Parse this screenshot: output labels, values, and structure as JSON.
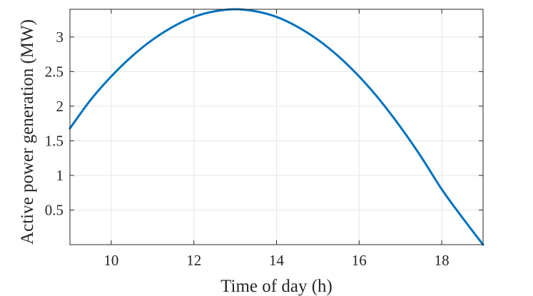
{
  "chart_data": {
    "type": "line",
    "title": "",
    "xlabel": "Time of day (h)",
    "ylabel": "Active power generation (MW)",
    "xlim": [
      9,
      19
    ],
    "ylim": [
      0,
      3.4
    ],
    "xticks": [
      10,
      12,
      14,
      16,
      18
    ],
    "yticks": [
      0.5,
      1,
      1.5,
      2,
      2.5,
      3
    ],
    "xtick_labels": [
      "10",
      "12",
      "14",
      "16",
      "18"
    ],
    "ytick_labels": [
      "0.5",
      "1",
      "1.5",
      "2",
      "2.5",
      "3"
    ],
    "grid": true,
    "legend": null,
    "series": [
      {
        "color": "#0072bd",
        "x": [
          9,
          9.5,
          10,
          10.5,
          11,
          11.5,
          12,
          12.5,
          13,
          13.5,
          14,
          14.5,
          15,
          15.5,
          16,
          16.5,
          17,
          17.5,
          18,
          18.5,
          19
        ],
        "y": [
          1.68,
          2.09,
          2.43,
          2.72,
          2.96,
          3.15,
          3.29,
          3.37,
          3.4,
          3.37,
          3.29,
          3.15,
          2.96,
          2.72,
          2.43,
          2.09,
          1.7,
          1.27,
          0.8,
          0.39,
          0.0
        ]
      }
    ]
  }
}
